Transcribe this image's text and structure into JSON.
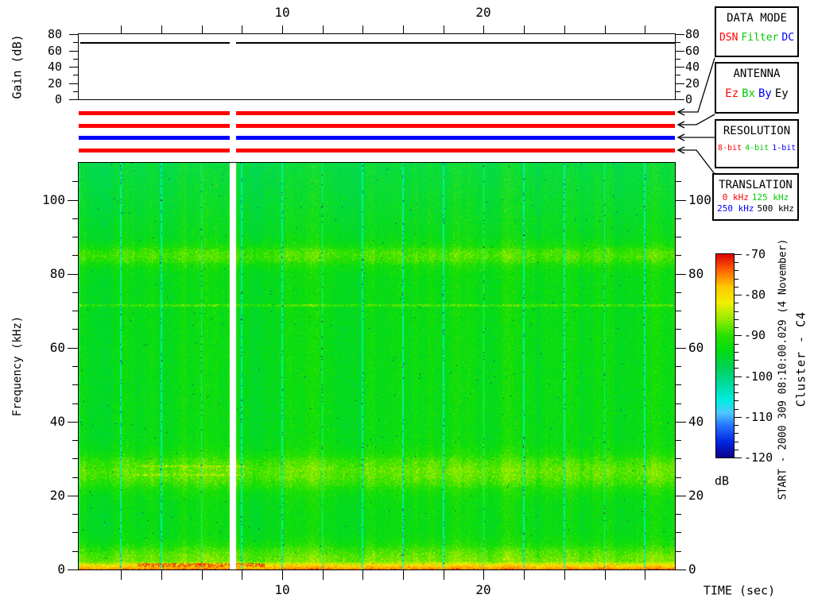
{
  "axis_labels": {
    "gain": "Gain (dB)",
    "freq": "Frequency (kHz)",
    "time": "TIME (sec)",
    "colorbar_unit": "dB"
  },
  "side_text": {
    "start_line": "START - 2000 309 08:10:00.029 (4 November)",
    "spacecraft": "Cluster - C4"
  },
  "legend_boxes": [
    {
      "name": "data-mode",
      "title": "DATA MODE",
      "items": [
        {
          "label": "DSN",
          "color": "#ff0000"
        },
        {
          "label": "Filter",
          "color": "#00cc00"
        },
        {
          "label": "DC",
          "color": "#0000ff"
        }
      ]
    },
    {
      "name": "antenna",
      "title": "ANTENNA",
      "items": [
        {
          "label": "Ez",
          "color": "#ff0000"
        },
        {
          "label": "Bx",
          "color": "#00cc00"
        },
        {
          "label": "By",
          "color": "#0000ff"
        },
        {
          "label": "Ey",
          "color": "#000000"
        }
      ]
    },
    {
      "name": "resolution",
      "title": "RESOLUTION",
      "items": [
        {
          "label": "8-bit",
          "color": "#ff0000"
        },
        {
          "label": "4-bit",
          "color": "#00cc00"
        },
        {
          "label": "1-bit",
          "color": "#0000ff"
        }
      ]
    },
    {
      "name": "translation",
      "title": "TRANSLATION",
      "rows": [
        [
          {
            "label": "0 kHz",
            "color": "#ff0000"
          },
          {
            "label": "125 kHz",
            "color": "#00cc00"
          }
        ],
        [
          {
            "label": "250 kHz",
            "color": "#0000ff"
          },
          {
            "label": "500 kHz",
            "color": "#000000"
          }
        ]
      ]
    }
  ],
  "status_bars": [
    {
      "name": "data-mode-bar",
      "color": "#ff0000",
      "indicates": "DSN"
    },
    {
      "name": "antenna-bar",
      "color": "#ff0000",
      "indicates": "Ez"
    },
    {
      "name": "resolution-bar",
      "color": "#0000ff",
      "indicates": "1-bit"
    },
    {
      "name": "translation-bar",
      "color": "#ff0000",
      "indicates": "0 kHz"
    }
  ],
  "chart_data": [
    {
      "id": "gain-panel",
      "type": "line",
      "ylabel": "Gain (dB)",
      "ylim": [
        0,
        80
      ],
      "yticks": [
        0,
        20,
        40,
        60,
        80
      ],
      "yticks_minor": [
        10,
        30,
        50,
        70
      ],
      "x_range_sec": [
        0,
        29.5
      ],
      "xticks_labeled": [
        10,
        20
      ],
      "xtick_minor_interval_sec": 2,
      "series": [
        {
          "name": "receiver-gain",
          "segments": [
            {
              "t_start_sec": 0,
              "t_end_sec": 7.4,
              "gain_db": 70
            },
            {
              "t_start_sec": 7.7,
              "t_end_sec": 29.5,
              "gain_db": 70
            }
          ]
        }
      ]
    },
    {
      "id": "spectrogram",
      "type": "heatmap",
      "xlabel": "TIME (sec)",
      "ylabel": "Frequency (kHz)",
      "x_range_sec": [
        0,
        29.5
      ],
      "y_range_khz": [
        0,
        110
      ],
      "xticks_labeled": [
        10,
        20
      ],
      "xtick_minor_interval_sec": 2,
      "yticks": [
        0,
        20,
        40,
        60,
        80,
        100
      ],
      "ytick_minor_interval_khz": 5,
      "colorbar": {
        "unit": "dB",
        "ticks": [
          -70,
          -80,
          -90,
          -100,
          -110,
          -120
        ],
        "minor_interval_db": 2,
        "range_db": [
          -70,
          -120
        ]
      },
      "background_db": -93,
      "features": [
        {
          "kind": "band",
          "freq_khz": [
            80,
            89
          ],
          "peak_db": -89,
          "desc": "diffuse yellowish emission band near 85 kHz"
        },
        {
          "kind": "narrowband-line",
          "freq_khz": 71.6,
          "db": -88,
          "desc": "thin yellow line across full record"
        },
        {
          "kind": "band",
          "freq_khz": [
            20,
            33
          ],
          "peak_db": -88,
          "desc": "broad mottled yellow-green emission band"
        },
        {
          "kind": "band",
          "freq_khz": [
            0,
            12
          ],
          "peak_db": -86,
          "desc": "low-frequency yellow enhancement"
        },
        {
          "kind": "intense-line",
          "freq_khz": 1,
          "db": -73,
          "time_sec": [
            2.8,
            9.3
          ],
          "desc": "red interference line near bottom"
        },
        {
          "kind": "data-gap",
          "time_sec": [
            7.4,
            7.7
          ],
          "desc": "white vertical data gap"
        },
        {
          "kind": "column-markers",
          "interval_sec": 2,
          "color": "#00f0c0",
          "desc": "cyan vertical lines every 2 s with dark blue specks"
        }
      ],
      "palette_stops_db_rgb": [
        [
          -70,
          221,
          0,
          0
        ],
        [
          -74,
          255,
          100,
          0
        ],
        [
          -78,
          255,
          200,
          0
        ],
        [
          -82,
          240,
          240,
          0
        ],
        [
          -86,
          150,
          235,
          0
        ],
        [
          -90,
          40,
          225,
          0
        ],
        [
          -94,
          0,
          220,
          20
        ],
        [
          -98,
          0,
          210,
          90
        ],
        [
          -102,
          0,
          220,
          160
        ],
        [
          -106,
          0,
          235,
          225
        ],
        [
          -109,
          80,
          200,
          255
        ],
        [
          -112,
          40,
          120,
          255
        ],
        [
          -116,
          0,
          40,
          230
        ],
        [
          -120,
          10,
          0,
          140
        ]
      ]
    }
  ]
}
